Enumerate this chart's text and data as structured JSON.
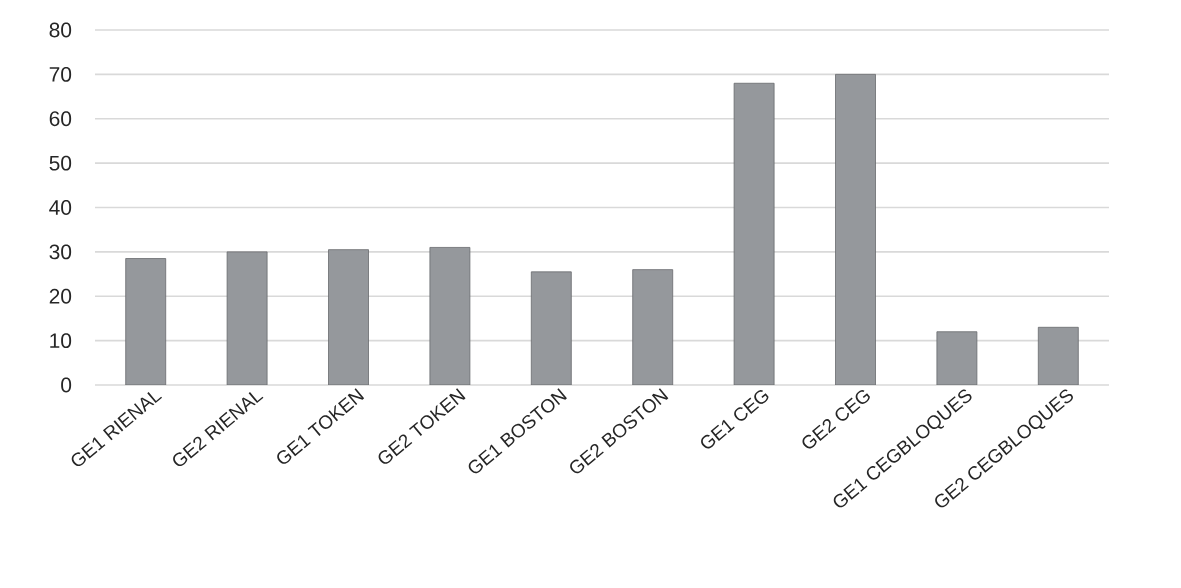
{
  "chart_data": {
    "type": "bar",
    "categories": [
      "GE1 RIENAL",
      "GE2 RIENAL",
      "GE1 TOKEN",
      "GE2 TOKEN",
      "GE1 BOSTON",
      "GE2 BOSTON",
      "GE1 CEG",
      "GE2 CEG",
      "GE1 CEGBLOQUES",
      "GE2 CEGBLOQUES"
    ],
    "values": [
      28.5,
      30,
      30.5,
      31,
      25.5,
      26,
      68,
      70,
      12,
      13
    ],
    "color": "#95989c",
    "ylim": [
      0,
      80
    ],
    "yticks": [
      0,
      10,
      20,
      30,
      40,
      50,
      60,
      70,
      80
    ],
    "grid": "y"
  }
}
